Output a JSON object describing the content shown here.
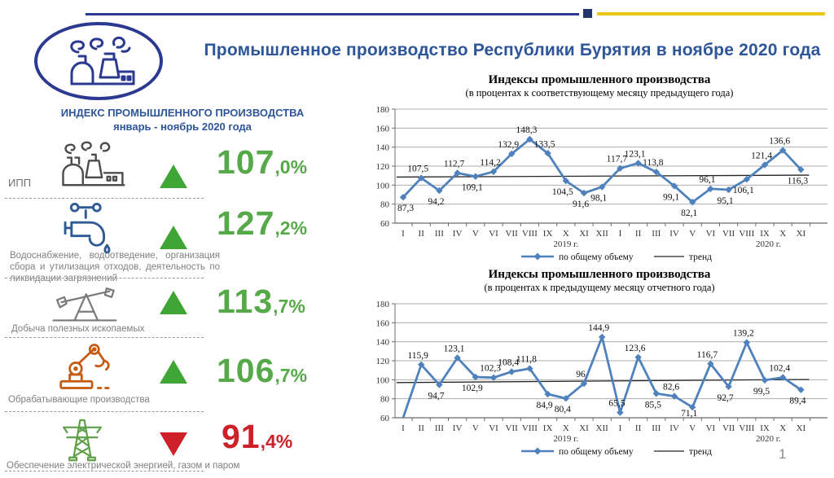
{
  "page": {
    "number": "1"
  },
  "header": {
    "title": "Промышленное производство Республики Бурятия в ноябре 2020 года",
    "accent_blue": "#2D5597",
    "accent_navy": "#2B3990",
    "accent_yellow": "#F0C419"
  },
  "left_panel": {
    "heading_line1": "ИНДЕКС ПРОМЫШЛЕННОГО ПРОИЗВОДСТВА",
    "heading_line2": "январь - ноябрь  2020 года",
    "up_color": "#3FA535",
    "down_color": "#CE2029",
    "rows": [
      {
        "icon": "factory-icon",
        "label": "ИПП",
        "value_int": "107",
        "value_dec": ",0%",
        "direction": "up"
      },
      {
        "icon": "water-tap-icon",
        "label": "Водоснабжение, водоотведение, организация сбора и утилизация отходов, деятельность по ликвидации загрязнений",
        "value_int": "127",
        "value_dec": ",2%",
        "direction": "up"
      },
      {
        "icon": "oil-pump-icon",
        "label": "Добыча полезных ископаемых",
        "value_int": "113",
        "value_dec": ",7%",
        "direction": "up"
      },
      {
        "icon": "robot-arm-icon",
        "label": "Обрабатывающие производства",
        "value_int": "106",
        "value_dec": ",7%",
        "direction": "up"
      },
      {
        "icon": "power-tower-icon",
        "label": "Обеспечение электрической энергией, газом и паром",
        "value_int": "91",
        "value_dec": ",4%",
        "direction": "down"
      }
    ]
  },
  "chart_data": [
    {
      "type": "line",
      "title": "Индексы промышленного производства",
      "subtitle": "(в процентах к соответствующему месяцу предыдущего года)",
      "ylim": [
        60,
        180
      ],
      "ytick_step": 20,
      "grid": true,
      "legend_position": "bottom",
      "x_labels": [
        "I",
        "II",
        "III",
        "IV",
        "V",
        "VI",
        "VII",
        "VIII",
        "IX",
        "X",
        "XI",
        "XII",
        "I",
        "II",
        "III",
        "IV",
        "V",
        "VI",
        "VII",
        "VIII",
        "IX",
        "X",
        "XI"
      ],
      "year_labels": [
        {
          "text": "2019 г.",
          "index": 9
        },
        {
          "text": "2020 г.",
          "index": 20.2
        }
      ],
      "series": [
        {
          "name": "по общему объему",
          "color": "#4F81BD",
          "values": [
            87.3,
            107.5,
            94.2,
            112.7,
            109.1,
            114.2,
            132.9,
            148.3,
            133.5,
            104.5,
            91.6,
            98.1,
            117.7,
            123.1,
            113.8,
            99.1,
            82.1,
            96.1,
            95.1,
            106.1,
            121.4,
            136.6,
            116.3
          ],
          "labels": [
            "87,3",
            "107,5",
            "94,2",
            "112,7",
            "109,1",
            "114,2",
            "132,9",
            "148,3",
            "133,5",
            "104,5",
            "91,6",
            "98,1",
            "117,7",
            "123,1",
            "113,8",
            "99,1",
            "82,1",
            "96,1",
            "95,1",
            "106,1",
            "121,4",
            "136,6",
            "116,3"
          ],
          "label_side": [
            "b",
            "a",
            "b",
            "a",
            "b",
            "a",
            "a",
            "a",
            "a",
            "b",
            "b",
            "b",
            "a",
            "a",
            "a",
            "b",
            "b",
            "a",
            "b",
            "b",
            "a",
            "a",
            "b"
          ]
        }
      ],
      "trend": {
        "name": "тренд",
        "color": "#262626",
        "from": 108.5,
        "to": 110.5
      }
    },
    {
      "type": "line",
      "title": "Индексы промышленного производства",
      "subtitle": "(в процентах к предыдущему месяцу отчетного года)",
      "ylim": [
        60,
        180
      ],
      "ytick_step": 20,
      "grid": true,
      "legend_position": "bottom",
      "x_labels": [
        "I",
        "II",
        "III",
        "IV",
        "V",
        "VI",
        "VII",
        "VIII",
        "IX",
        "X",
        "XI",
        "XII",
        "I",
        "II",
        "III",
        "IV",
        "V",
        "VI",
        "VII",
        "VIII",
        "IX",
        "X",
        "XI"
      ],
      "year_labels": [
        {
          "text": "2019 г.",
          "index": 9
        },
        {
          "text": "2020 г.",
          "index": 20.2
        }
      ],
      "series": [
        {
          "name": "по общему объему",
          "color": "#4F81BD",
          "values": [
            60,
            115.9,
            94.7,
            123.1,
            102.9,
            102.3,
            108.4,
            111.8,
            84.9,
            80.4,
            96,
            144.9,
            65.5,
            123.6,
            85.5,
            82.6,
            71.1,
            116.7,
            92.7,
            139.2,
            99.5,
            102.4,
            89.4
          ],
          "labels": [
            "",
            "115,9",
            "94,7",
            "123,1",
            "102,9",
            "102,3",
            "108,4",
            "111,8",
            "84,9",
            "80,4",
            "96",
            "144,9",
            "65,5",
            "123,6",
            "85,5",
            "82,6",
            "71,1",
            "116,7",
            "92,7",
            "139,2",
            "99,5",
            "102,4",
            "89,4"
          ],
          "label_side": [
            "b",
            "a",
            "b",
            "a",
            "b",
            "a",
            "a",
            "a",
            "b",
            "b",
            "a",
            "a",
            "a",
            "a",
            "b",
            "a",
            "b",
            "a",
            "b",
            "a",
            "b",
            "a",
            "b"
          ]
        }
      ],
      "trend": {
        "name": "тренд",
        "color": "#262626",
        "from": 97,
        "to": 100.3
      }
    }
  ]
}
